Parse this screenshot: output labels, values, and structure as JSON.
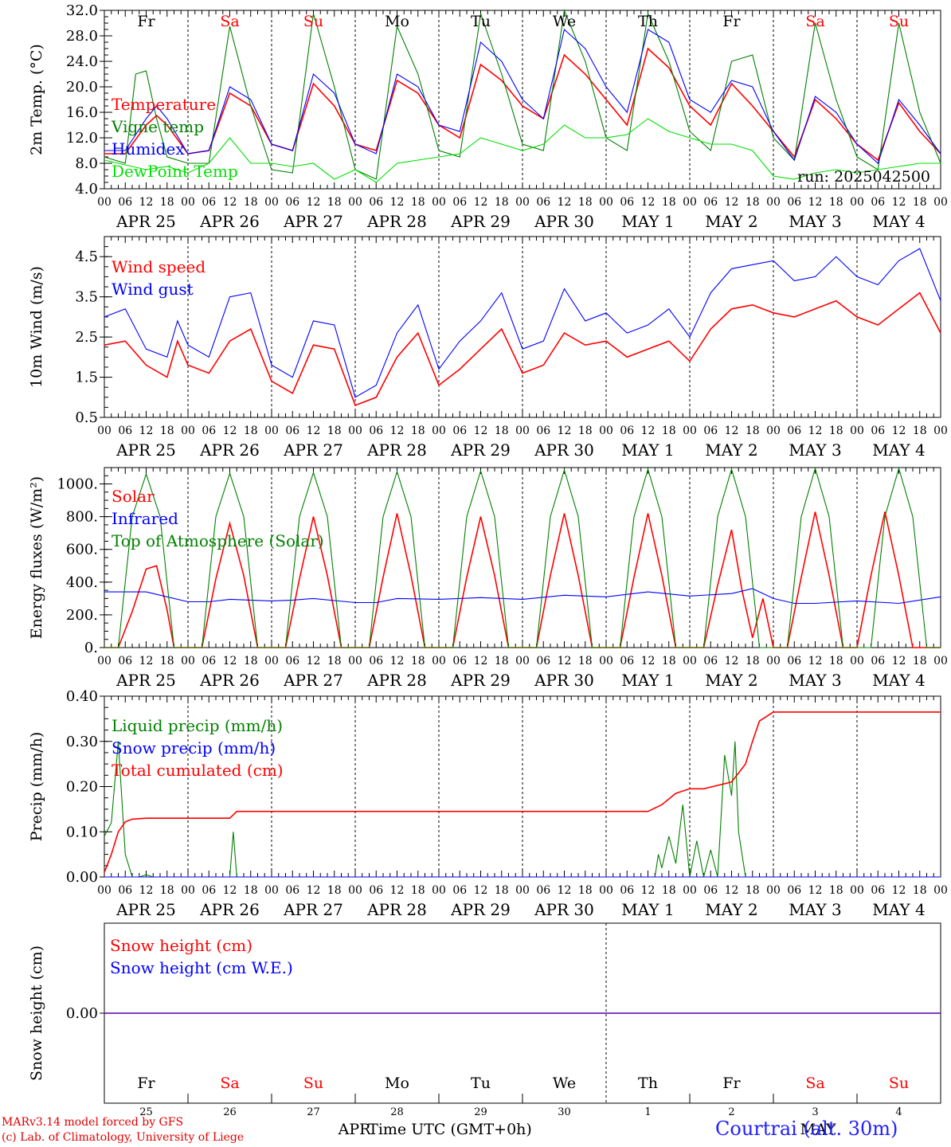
{
  "weekdays": [
    {
      "label": "Fr",
      "weekend": false
    },
    {
      "label": "Sa",
      "weekend": true
    },
    {
      "label": "Su",
      "weekend": true
    },
    {
      "label": "Mo",
      "weekend": false
    },
    {
      "label": "Tu",
      "weekend": false
    },
    {
      "label": "We",
      "weekend": false
    },
    {
      "label": "Th",
      "weekend": false
    },
    {
      "label": "Fr",
      "weekend": false
    },
    {
      "label": "Sa",
      "weekend": true
    },
    {
      "label": "Su",
      "weekend": true
    }
  ],
  "dates": [
    "APR 25",
    "APR 26",
    "APR 27",
    "APR 28",
    "APR 29",
    "APR 30",
    "MAY  1",
    "MAY  2",
    "MAY  3",
    "MAY  4"
  ],
  "hour_ticks": [
    "00",
    "06",
    "12",
    "18"
  ],
  "hour_tick_end": "00",
  "day_numbers": [
    "25",
    "26",
    "27",
    "28",
    "29",
    "30",
    "1",
    "2",
    "3",
    "4"
  ],
  "month_left": "APR",
  "month_right": "MAY",
  "xlabel": "Time UTC (GMT+0h)",
  "footer": {
    "line1": "MARv3.14 model forced by GFS",
    "line2": "(c) Lab. of Climatology, University of Liege",
    "station": "Courtrai (alt. 30m)"
  },
  "colors": {
    "red": "#ff0000",
    "darkgreen": "#008000",
    "blue": "#0000ff",
    "lightgreen": "#00e000",
    "weekend": "#ff0000"
  },
  "chart_data": [
    {
      "type": "line",
      "ylabel": "2m Temp. (°C)",
      "ylim": [
        4,
        32
      ],
      "yticks": [
        "4.0",
        "8.0",
        "12.0",
        "16.0",
        "20.0",
        "24.0",
        "28.0",
        "32.0"
      ],
      "annotation": "run: 2025042500",
      "x_unit": "hours since APR 25 00 UTC",
      "series": [
        {
          "name": "Temperature",
          "color": "red",
          "x": [
            0,
            6,
            12,
            15,
            18,
            24,
            30,
            36,
            42,
            48,
            54,
            60,
            66,
            72,
            78,
            84,
            90,
            96,
            102,
            108,
            114,
            120,
            126,
            132,
            138,
            144,
            150,
            156,
            162,
            168,
            174,
            180,
            186,
            192,
            198,
            204,
            210,
            216,
            222,
            228,
            234,
            240
          ],
          "values": [
            9.5,
            9.5,
            14,
            15.5,
            14,
            9.5,
            10,
            19,
            17,
            11,
            10,
            20.5,
            17,
            11,
            10,
            21,
            19,
            14,
            12,
            23.5,
            21,
            17,
            15,
            25,
            22,
            18,
            14,
            26,
            23,
            17,
            14,
            20.5,
            17,
            13,
            9,
            18,
            15,
            11,
            8.5,
            17.5,
            13,
            9.5
          ]
        },
        {
          "name": "Vigne temp",
          "color": "darkgreen",
          "x": [
            0,
            6,
            9,
            12,
            15,
            18,
            24,
            30,
            36,
            42,
            48,
            54,
            60,
            66,
            72,
            78,
            84,
            90,
            96,
            102,
            108,
            114,
            120,
            126,
            132,
            138,
            144,
            150,
            156,
            162,
            168,
            174,
            180,
            186,
            192,
            198,
            204,
            210,
            216,
            222,
            228,
            234,
            240
          ],
          "values": [
            9,
            8,
            22,
            22.5,
            15,
            9,
            8,
            8,
            29.5,
            17,
            7,
            6.5,
            31.5,
            20,
            7,
            5.5,
            29.5,
            22,
            10,
            9,
            31.5,
            22,
            11,
            10,
            32,
            24,
            12,
            10,
            31.5,
            24,
            13,
            10,
            24,
            25,
            12,
            8.5,
            30,
            18,
            9,
            7,
            30,
            16,
            8
          ]
        },
        {
          "name": "Humidex",
          "color": "blue",
          "x": [
            0,
            6,
            12,
            15,
            18,
            24,
            30,
            36,
            42,
            48,
            54,
            60,
            66,
            72,
            78,
            84,
            90,
            96,
            102,
            108,
            114,
            120,
            126,
            132,
            138,
            144,
            150,
            156,
            162,
            168,
            174,
            180,
            186,
            192,
            198,
            204,
            210,
            216,
            222,
            228,
            234,
            240
          ],
          "values": [
            10,
            10,
            15,
            17,
            15,
            9.5,
            10,
            20,
            18,
            11,
            10,
            22,
            19,
            11,
            9.5,
            22,
            20,
            14,
            13,
            27,
            24,
            18,
            15,
            29,
            26,
            20,
            16,
            29,
            27,
            18,
            16,
            21,
            20,
            13,
            8.5,
            18.5,
            16,
            11,
            8,
            18,
            14,
            9.5
          ]
        },
        {
          "name": "DewPoint Temp",
          "color": "lightgreen",
          "x": [
            0,
            12,
            18,
            24,
            30,
            36,
            42,
            48,
            54,
            60,
            66,
            72,
            78,
            84,
            90,
            96,
            102,
            108,
            114,
            120,
            126,
            132,
            138,
            144,
            150,
            156,
            162,
            168,
            174,
            180,
            186,
            192,
            198,
            204,
            210,
            216,
            222,
            228,
            234,
            240
          ],
          "values": [
            8.5,
            7,
            7.5,
            6.5,
            8,
            12,
            8,
            8,
            7.5,
            8,
            5.5,
            7,
            5,
            8,
            8.5,
            9,
            9.5,
            12,
            11,
            10,
            11,
            14,
            12,
            12,
            12.5,
            15,
            13,
            12,
            11,
            11,
            10,
            6,
            5.5,
            6.5,
            7,
            6.5,
            7,
            7.5,
            8,
            8
          ]
        }
      ]
    },
    {
      "type": "line",
      "ylabel": "10m Wind (m/s)",
      "ylim": [
        0.5,
        5
      ],
      "yticks": [
        "0.5",
        "1.5",
        "2.5",
        "3.5",
        "4.5"
      ],
      "x_unit": "hours since APR 25 00 UTC",
      "series": [
        {
          "name": "Wind speed",
          "color": "red",
          "x": [
            0,
            6,
            12,
            18,
            21,
            24,
            30,
            36,
            42,
            48,
            54,
            60,
            66,
            72,
            78,
            84,
            90,
            96,
            102,
            108,
            114,
            120,
            126,
            132,
            138,
            144,
            150,
            156,
            162,
            168,
            174,
            180,
            186,
            192,
            198,
            204,
            210,
            216,
            222,
            228,
            234,
            240
          ],
          "values": [
            2.3,
            2.4,
            1.8,
            1.5,
            2.4,
            1.8,
            1.6,
            2.4,
            2.7,
            1.4,
            1.1,
            2.3,
            2.2,
            0.8,
            1.0,
            2.0,
            2.6,
            1.3,
            1.7,
            2.2,
            2.7,
            1.6,
            1.8,
            2.6,
            2.3,
            2.4,
            2.0,
            2.2,
            2.4,
            1.9,
            2.7,
            3.2,
            3.3,
            3.1,
            3.0,
            3.2,
            3.4,
            3.0,
            2.8,
            3.2,
            3.6,
            2.6
          ]
        },
        {
          "name": "Wind gust",
          "color": "blue",
          "x": [
            0,
            6,
            12,
            18,
            21,
            24,
            30,
            36,
            42,
            48,
            54,
            60,
            66,
            72,
            78,
            84,
            90,
            96,
            102,
            108,
            114,
            120,
            126,
            132,
            138,
            144,
            150,
            156,
            162,
            168,
            174,
            180,
            186,
            192,
            198,
            204,
            210,
            216,
            222,
            228,
            234,
            240
          ],
          "values": [
            3.0,
            3.2,
            2.2,
            2.0,
            2.9,
            2.3,
            2.0,
            3.5,
            3.6,
            1.8,
            1.5,
            2.9,
            2.8,
            1.0,
            1.3,
            2.6,
            3.3,
            1.7,
            2.4,
            2.9,
            3.6,
            2.2,
            2.4,
            3.7,
            2.9,
            3.1,
            2.6,
            2.8,
            3.2,
            2.5,
            3.6,
            4.2,
            4.3,
            4.4,
            3.9,
            4.0,
            4.5,
            4.0,
            3.8,
            4.4,
            4.7,
            3.4
          ]
        }
      ]
    },
    {
      "type": "line",
      "ylabel": "Energy fluxes (W/m²)",
      "ylim": [
        0,
        1100
      ],
      "yticks": [
        "0.",
        "200.",
        "400.",
        "600.",
        "800.",
        "1000."
      ],
      "x_unit": "hours since APR 25 00 UTC",
      "series": [
        {
          "name": "Solar",
          "color": "red",
          "x": [
            0,
            4,
            8,
            12,
            15,
            18,
            20,
            28,
            32,
            36,
            40,
            44,
            52,
            56,
            60,
            64,
            68,
            76,
            80,
            84,
            88,
            92,
            100,
            104,
            108,
            112,
            116,
            124,
            128,
            132,
            136,
            140,
            148,
            152,
            156,
            160,
            164,
            172,
            176,
            180,
            183,
            186,
            189,
            192,
            196,
            200,
            204,
            208,
            212,
            216,
            220,
            224,
            228,
            232,
            236,
            240
          ],
          "values": [
            0,
            0,
            220,
            480,
            500,
            230,
            0,
            0,
            420,
            760,
            440,
            0,
            0,
            420,
            800,
            440,
            0,
            0,
            430,
            820,
            440,
            0,
            0,
            430,
            800,
            440,
            0,
            0,
            440,
            820,
            440,
            0,
            0,
            430,
            820,
            440,
            0,
            0,
            380,
            720,
            350,
            60,
            300,
            0,
            0,
            430,
            830,
            440,
            0,
            0,
            440,
            830,
            440,
            0,
            0,
            0
          ]
        },
        {
          "name": "Infrared",
          "color": "blue",
          "x": [
            0,
            12,
            18,
            24,
            30,
            36,
            48,
            54,
            60,
            72,
            78,
            84,
            96,
            108,
            120,
            132,
            144,
            156,
            168,
            180,
            186,
            192,
            198,
            204,
            216,
            228,
            240
          ],
          "values": [
            340,
            340,
            310,
            280,
            280,
            295,
            285,
            290,
            300,
            275,
            275,
            300,
            295,
            305,
            295,
            320,
            310,
            340,
            315,
            330,
            360,
            300,
            270,
            270,
            285,
            270,
            310
          ]
        },
        {
          "name": "Top of Atmosphere (Solar)",
          "color": "darkgreen",
          "x": [
            0,
            4,
            8,
            12,
            16,
            20,
            28,
            32,
            36,
            40,
            44,
            52,
            56,
            60,
            64,
            68,
            76,
            80,
            84,
            88,
            92,
            100,
            104,
            108,
            112,
            116,
            124,
            128,
            132,
            136,
            140,
            148,
            152,
            156,
            160,
            164,
            172,
            176,
            180,
            184,
            188,
            196,
            200,
            204,
            208,
            212,
            220,
            224,
            228,
            232,
            236,
            240
          ],
          "values": [
            0,
            0,
            800,
            1060,
            800,
            0,
            0,
            800,
            1065,
            800,
            0,
            0,
            800,
            1070,
            800,
            0,
            0,
            800,
            1075,
            800,
            0,
            0,
            800,
            1080,
            800,
            0,
            0,
            800,
            1085,
            800,
            0,
            0,
            800,
            1090,
            800,
            0,
            0,
            800,
            1090,
            800,
            0,
            0,
            800,
            1095,
            800,
            0,
            0,
            800,
            1095,
            800,
            0,
            0
          ]
        }
      ]
    },
    {
      "type": "line",
      "ylabel": "Precip (mm/h)",
      "ylim": [
        0,
        0.4
      ],
      "yticks": [
        "0.00",
        "0.10",
        "0.20",
        "0.30",
        "0.40"
      ],
      "x_unit": "hours since APR 25 00 UTC",
      "series": [
        {
          "name": "Liquid precip (mm/h)",
          "color": "darkgreen",
          "x": [
            0,
            2,
            4,
            6,
            8,
            10,
            12,
            14,
            36,
            37,
            38,
            39,
            40,
            158,
            159,
            160,
            162,
            164,
            166,
            168,
            170,
            172,
            174,
            176,
            178,
            180,
            181,
            182,
            184,
            186,
            188,
            190,
            192,
            240
          ],
          "values": [
            0.09,
            0.12,
            0.3,
            0.05,
            0.0,
            0.0,
            0.005,
            0.0,
            0.0,
            0.1,
            0.0,
            0.0,
            0.0,
            0.0,
            0.05,
            0.02,
            0.09,
            0.03,
            0.16,
            0.0,
            0.08,
            0.0,
            0.06,
            0.0,
            0.27,
            0.18,
            0.3,
            0.1,
            0.0,
            0.0,
            0.0,
            0.0,
            0.0,
            0.0
          ]
        },
        {
          "name": "Snow precip (mm/h)",
          "color": "blue",
          "x": [
            0,
            240
          ],
          "values": [
            0,
            0
          ]
        },
        {
          "name": "Total cumulated (cm)",
          "color": "red",
          "x": [
            0,
            2,
            4,
            6,
            8,
            12,
            24,
            36,
            38,
            48,
            72,
            96,
            120,
            144,
            156,
            160,
            164,
            168,
            172,
            180,
            184,
            186,
            188,
            192,
            200,
            240
          ],
          "values": [
            0.01,
            0.05,
            0.1,
            0.122,
            0.128,
            0.13,
            0.13,
            0.13,
            0.145,
            0.145,
            0.145,
            0.145,
            0.145,
            0.145,
            0.145,
            0.16,
            0.185,
            0.195,
            0.195,
            0.21,
            0.25,
            0.3,
            0.345,
            0.365,
            0.365,
            0.365
          ]
        }
      ]
    },
    {
      "type": "line",
      "ylabel": "Snow height (cm)",
      "ylim": [
        -1,
        1
      ],
      "yticks": [
        "0.00"
      ],
      "x_unit": "hours since APR 25 00 UTC",
      "series": [
        {
          "name": "Snow height (cm)",
          "color": "red",
          "x": [
            0,
            240
          ],
          "values": [
            0,
            0
          ]
        },
        {
          "name": "Snow height (cm W.E.)",
          "color": "blue",
          "x": [
            0,
            240
          ],
          "values": [
            0,
            0
          ]
        }
      ]
    }
  ]
}
